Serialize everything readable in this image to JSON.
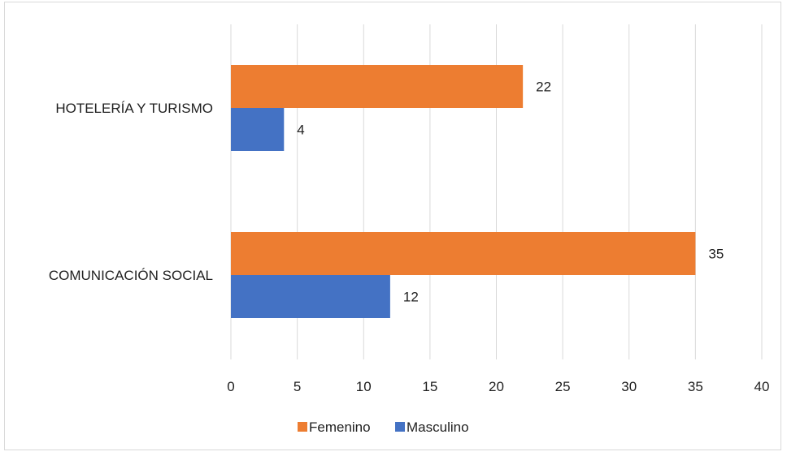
{
  "chart_data": {
    "type": "bar",
    "orientation": "horizontal",
    "categories": [
      "HOTELERÍA Y TURISMO",
      "COMUNICACIÓN SOCIAL"
    ],
    "series": [
      {
        "name": "Femenino",
        "values": [
          22,
          35
        ],
        "color": "#ED7D31"
      },
      {
        "name": "Masculino",
        "values": [
          4,
          12
        ],
        "color": "#4472C4"
      }
    ],
    "x_ticks": [
      "0",
      "5",
      "10",
      "15",
      "20",
      "25",
      "30",
      "35",
      "40"
    ],
    "xlim": [
      0,
      40
    ],
    "grid": true,
    "data_labels": true,
    "legend_position": "bottom"
  }
}
